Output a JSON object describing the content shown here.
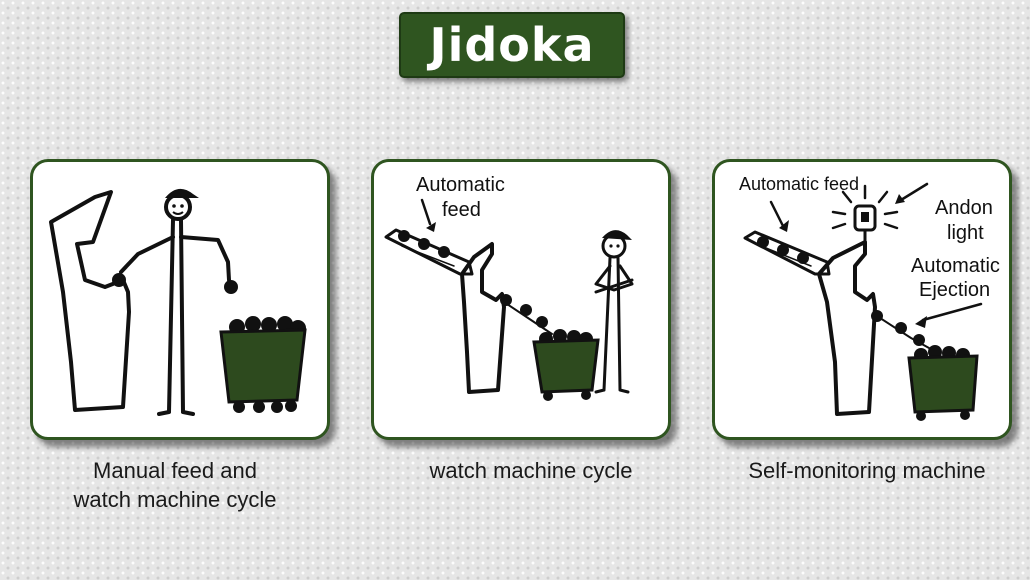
{
  "title": "Jidoka",
  "panels": [
    {
      "caption_line1": "Manual feed and",
      "caption_line2": "watch machine cycle",
      "labels": {}
    },
    {
      "caption_line1": "watch machine cycle",
      "labels": {
        "feed_line1": "Automatic",
        "feed_line2": "feed"
      }
    },
    {
      "caption_line1": "Self-monitoring machine",
      "labels": {
        "feed": "Automatic feed",
        "andon_line1": "Andon",
        "andon_line2": "light",
        "eject_line1": "Automatic",
        "eject_line2": "Ejection"
      }
    }
  ],
  "colors": {
    "accent": "#2f5520",
    "bin": "#2d4a1e",
    "ink": "#111111"
  }
}
